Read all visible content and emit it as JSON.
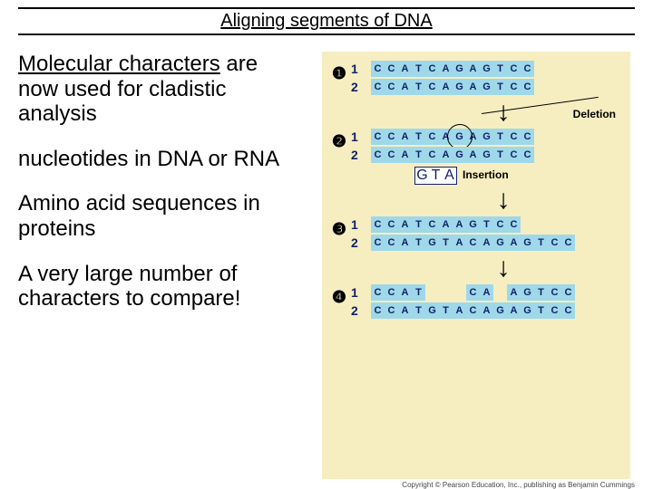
{
  "title": "Aligning segments of DNA",
  "left": {
    "p1_underlined": "Molecular characters",
    "p1_rest": " are now used for cladistic analysis",
    "p2": "nucleotides in DNA or RNA",
    "p3": "Amino acid sequences in proteins",
    "p4": "A very large number of characters to compare!"
  },
  "diagram": {
    "bg_color": "#f6eec1",
    "seq_bg": "#9fd8e8",
    "text_color": "#10226b",
    "panels": [
      {
        "num": "❶",
        "rows": [
          {
            "label": "1",
            "seq": [
              "C",
              "C",
              "A",
              "T",
              "C",
              "A",
              "G",
              "A",
              "G",
              "T",
              "C",
              "C"
            ]
          },
          {
            "label": "2",
            "seq": [
              "C",
              "C",
              "A",
              "T",
              "C",
              "A",
              "G",
              "A",
              "G",
              "T",
              "C",
              "C"
            ]
          }
        ],
        "arrow_label": "Deletion",
        "arrow_label_pos": "right"
      },
      {
        "num": "❷",
        "rows": [
          {
            "label": "1",
            "seq": [
              "C",
              "C",
              "A",
              "T",
              "C",
              "A",
              "G",
              "A",
              "G",
              "T",
              "C",
              "C"
            ],
            "circle_at": 6
          },
          {
            "label": "2",
            "seq": [
              "C",
              "C",
              "A",
              "T",
              "C",
              "A",
              "G",
              "A",
              "G",
              "T",
              "C",
              "C"
            ]
          }
        ],
        "insertion": {
          "seq": [
            "G",
            "T",
            "A"
          ],
          "label": "Insertion"
        }
      },
      {
        "num": "❸",
        "rows": [
          {
            "label": "1",
            "seq": [
              "C",
              "C",
              "A",
              "T",
              "C",
              "A",
              "A",
              "G",
              "T",
              "C",
              "C"
            ]
          },
          {
            "label": "2",
            "seq": [
              "C",
              "C",
              "A",
              "T",
              "G",
              "T",
              "A",
              "C",
              "A",
              "G",
              "A",
              "G",
              "T",
              "C",
              "C"
            ]
          }
        ]
      },
      {
        "num": "❹",
        "rows": [
          {
            "label": "1",
            "seq": [
              "C",
              "C",
              "A",
              "T",
              " ",
              " ",
              " ",
              "C",
              "A",
              " ",
              "A",
              "G",
              "T",
              "C",
              "C"
            ]
          },
          {
            "label": "2",
            "seq": [
              "C",
              "C",
              "A",
              "T",
              "G",
              "T",
              "A",
              "C",
              "A",
              "G",
              "A",
              "G",
              "T",
              "C",
              "C"
            ]
          }
        ]
      }
    ]
  },
  "copyright": "Copyright © Pearson Education, Inc., publishing as Benjamin Cummings"
}
